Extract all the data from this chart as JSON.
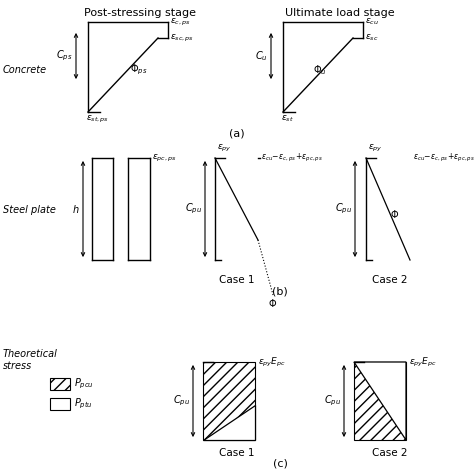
{
  "bg_color": "#ffffff",
  "line_color": "#000000",
  "title_left": "Post-stressing stage",
  "title_right": "Ultimate load stage",
  "label_concrete": "Concrete",
  "label_steelplate": "Steel plate",
  "label_theoreticalstress": "Theoretical\nstress",
  "label_a": "(a)",
  "label_b": "(b)",
  "label_c": "(c)",
  "label_case1": "Case 1",
  "label_case2": "Case 2",
  "ec_ps": "$\\varepsilon_{c,ps}$",
  "esc_ps": "$\\varepsilon_{sc,ps}$",
  "phi_ps": "$\\Phi_{ps}$",
  "est_ps": "$\\varepsilon_{st,ps}$",
  "cps": "$C_{ps}$",
  "ecu": "$\\varepsilon_{cu}$",
  "esc": "$\\varepsilon_{sc}$",
  "phi_u": "$\\Phi_u$",
  "est": "$\\varepsilon_{st}$",
  "cu": "$C_u$",
  "epc_ps": "$\\varepsilon_{pc,ps}$",
  "epy": "$\\varepsilon_{py}$",
  "ecu_label": "$\\varepsilon_{cu}\\!-\\!\\varepsilon_{c,ps}\\!+\\!\\varepsilon_{pc,ps}$",
  "cpu": "$C_{pu}$",
  "phi": "$\\Phi$",
  "h": "$h$",
  "epy_epc": "$\\varepsilon_{py}E_{pc}$",
  "ppcu": "$P_{pcu}$",
  "pptu": "$P_{ptu}$"
}
